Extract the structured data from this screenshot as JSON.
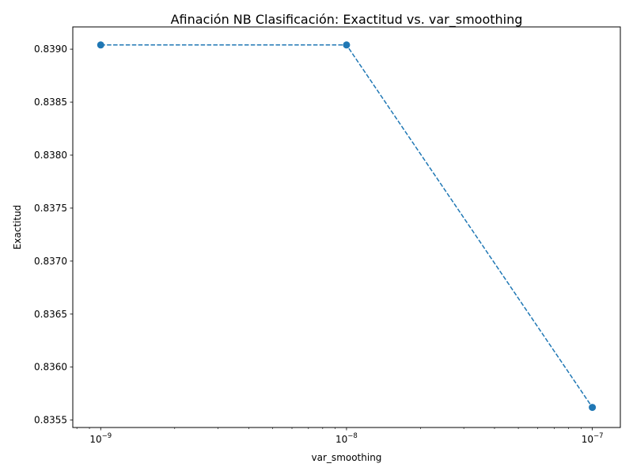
{
  "chart_data": {
    "type": "line",
    "title": "Afinación NB Clasificación: Exactitud vs. var_smoothing",
    "xlabel": "var_smoothing",
    "ylabel": "Exactitud",
    "xscale": "log",
    "x": [
      1e-09,
      1e-08,
      1e-07
    ],
    "x_tick_labels": [
      {
        "value": 1e-09,
        "base": "10",
        "exp": "−9"
      },
      {
        "value": 1e-08,
        "base": "10",
        "exp": "−8"
      },
      {
        "value": 1e-07,
        "base": "10",
        "exp": "−7"
      }
    ],
    "xlim": [
      7.7e-10,
      1.3e-07
    ],
    "y_ticks": [
      0.8355,
      0.836,
      0.8365,
      0.837,
      0.8375,
      0.838,
      0.8385,
      0.839
    ],
    "y_tick_labels": [
      "0.8355",
      "0.8360",
      "0.8365",
      "0.8370",
      "0.8375",
      "0.8380",
      "0.8385",
      "0.8390"
    ],
    "ylim": [
      0.83543,
      0.83921
    ],
    "series": [
      {
        "values": [
          0.83904,
          0.83904,
          0.83562
        ],
        "color": "#1f77b4",
        "linestyle": "dashed",
        "marker": "circle"
      }
    ],
    "grid": false,
    "legend": false
  }
}
